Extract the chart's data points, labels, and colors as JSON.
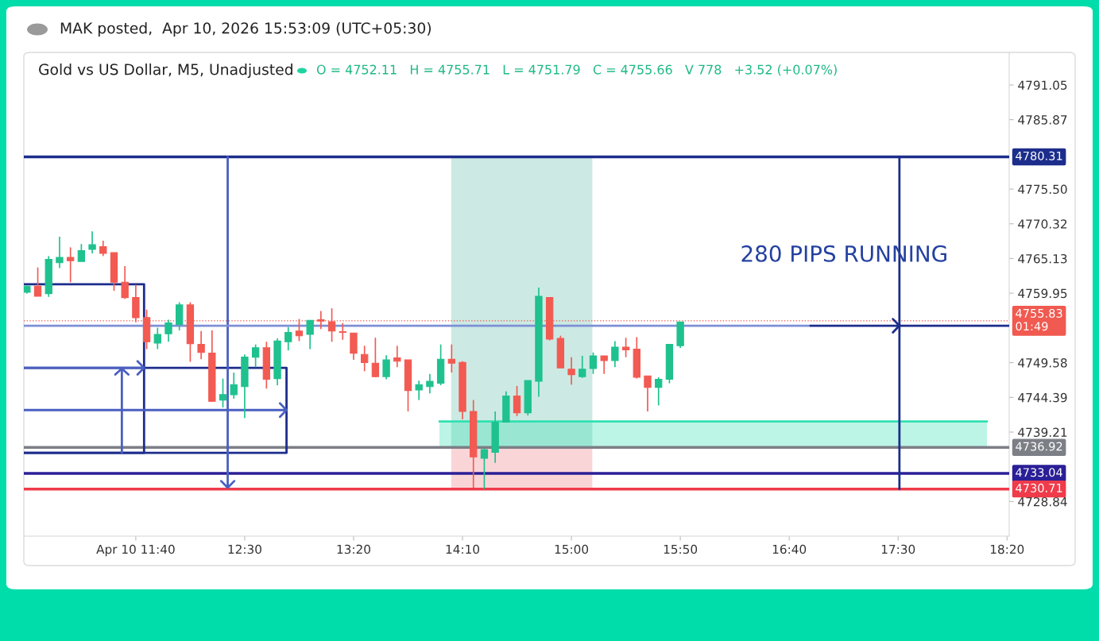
{
  "chart_data": {
    "type": "candlestick",
    "title": "Gold vs US Dollar, M5, Unadjusted",
    "subtitle": "O = 4752.11   H = 4755.71   L = 4751.79   C = 4755.66   V 778   +3.52 (+0.07%)",
    "annotations": [
      "MAK posted,  Apr 10, 2026 15:53:09 (UTC+05:30)",
      "280 PIPS RUNNING"
    ],
    "x": [
      10.8333,
      10.9167,
      11.0,
      11.0833,
      11.1667,
      11.25,
      11.3333,
      11.4167,
      11.5,
      11.5833,
      11.6667,
      11.75,
      11.8333,
      11.9167,
      12.0,
      12.0833,
      12.1667,
      12.25,
      12.3333,
      12.4167,
      12.5,
      12.5833,
      12.6667,
      12.75,
      12.8333,
      12.9167,
      13.0,
      13.0833,
      13.1667,
      13.25,
      13.3333,
      13.4167,
      13.5,
      13.5833,
      13.6667,
      13.75,
      13.8333,
      13.9167,
      14.0,
      14.0833,
      14.1667,
      14.25,
      14.3333,
      14.4167,
      14.5,
      14.5833,
      14.6667,
      14.75,
      14.8333,
      14.9167,
      15.0,
      15.0833,
      15.1667,
      15.25,
      15.3333,
      15.4167,
      15.5,
      15.5833,
      15.6667,
      15.75,
      15.8333
    ],
    "ohlc": [
      [
        4760.1,
        4761.1,
        4759.9,
        4761.0
      ],
      [
        4761.0,
        4763.8,
        4759.5,
        4759.5
      ],
      [
        4759.9,
        4765.5,
        4759.4,
        4765.0
      ],
      [
        4764.5,
        4768.4,
        4763.7,
        4765.3
      ],
      [
        4765.3,
        4766.8,
        4761.6,
        4764.8
      ],
      [
        4764.7,
        4767.3,
        4764.7,
        4766.3
      ],
      [
        4766.5,
        4769.2,
        4765.9,
        4767.2
      ],
      [
        4766.9,
        4767.8,
        4765.5,
        4765.9
      ],
      [
        4766.0,
        4766.0,
        4760.3,
        4761.6
      ],
      [
        4761.6,
        4764.0,
        4759.1,
        4759.3
      ],
      [
        4759.3,
        4761.2,
        4755.6,
        4756.3
      ],
      [
        4756.3,
        4757.5,
        4751.6,
        4752.7
      ],
      [
        4752.5,
        4754.8,
        4751.6,
        4753.8
      ],
      [
        4753.9,
        4756.0,
        4752.7,
        4755.5
      ],
      [
        4755.3,
        4758.6,
        4754.4,
        4758.2
      ],
      [
        4758.2,
        4758.6,
        4749.7,
        4752.4
      ],
      [
        4752.3,
        4754.3,
        4750.1,
        4751.1
      ],
      [
        4751.0,
        4754.4,
        4743.8,
        4743.8
      ],
      [
        4744.0,
        4747.2,
        4742.9,
        4744.8
      ],
      [
        4744.8,
        4748.1,
        4744.2,
        4746.3
      ],
      [
        4746.0,
        4750.8,
        4741.3,
        4750.4
      ],
      [
        4750.4,
        4752.3,
        4748.9,
        4751.8
      ],
      [
        4751.8,
        4752.7,
        4745.7,
        4747.1
      ],
      [
        4747.2,
        4753.2,
        4746.2,
        4752.8
      ],
      [
        4752.7,
        4754.9,
        4751.4,
        4754.1
      ],
      [
        4754.3,
        4756.1,
        4752.8,
        4753.6
      ],
      [
        4753.8,
        4755.9,
        4751.6,
        4755.9
      ],
      [
        4756.0,
        4757.3,
        4754.6,
        4755.8
      ],
      [
        4755.7,
        4757.7,
        4752.7,
        4754.3
      ],
      [
        4754.2,
        4755.5,
        4753.0,
        4754.1
      ],
      [
        4754.0,
        4754.0,
        4750.0,
        4751.0
      ],
      [
        4750.8,
        4752.1,
        4748.3,
        4749.6
      ],
      [
        4749.5,
        4753.3,
        4747.4,
        4747.5
      ],
      [
        4747.5,
        4750.7,
        4747.1,
        4750.0
      ],
      [
        4750.3,
        4752.1,
        4748.9,
        4749.8
      ],
      [
        4750.0,
        4750.0,
        4742.3,
        4745.4
      ],
      [
        4745.5,
        4746.9,
        4744.0,
        4746.3
      ],
      [
        4746.0,
        4747.9,
        4745.0,
        4746.8
      ],
      [
        4746.5,
        4752.3,
        4746.2,
        4750.1
      ],
      [
        4750.1,
        4752.3,
        4748.1,
        4749.5
      ],
      [
        4749.6,
        4749.8,
        4741.1,
        4742.3
      ],
      [
        4742.3,
        4744.0,
        4730.9,
        4735.5
      ],
      [
        4735.3,
        4736.7,
        4730.7,
        4736.6
      ],
      [
        4736.2,
        4742.3,
        4734.6,
        4740.7
      ],
      [
        4740.7,
        4745.3,
        4740.7,
        4744.6
      ],
      [
        4744.6,
        4746.1,
        4741.6,
        4742.1
      ],
      [
        4742.1,
        4746.9,
        4741.7,
        4746.9
      ],
      [
        4746.8,
        4760.8,
        4744.5,
        4759.5
      ],
      [
        4759.3,
        4759.3,
        4752.9,
        4753.1
      ],
      [
        4753.2,
        4753.6,
        4748.8,
        4748.8
      ],
      [
        4748.6,
        4750.4,
        4746.3,
        4747.8
      ],
      [
        4747.5,
        4750.6,
        4747.3,
        4748.6
      ],
      [
        4748.7,
        4751.1,
        4747.9,
        4750.6
      ],
      [
        4750.6,
        4750.6,
        4747.9,
        4749.9
      ],
      [
        4749.9,
        4752.8,
        4748.9,
        4751.9
      ],
      [
        4751.9,
        4753.3,
        4750.4,
        4751.5
      ],
      [
        4751.6,
        4753.4,
        4747.2,
        4747.4
      ],
      [
        4747.6,
        4747.6,
        4742.3,
        4745.9
      ],
      [
        4745.9,
        4747.4,
        4743.2,
        4747.1
      ],
      [
        4747.1,
        4752.3,
        4746.5,
        4752.3
      ],
      [
        4752.11,
        4755.71,
        4751.79,
        4755.66
      ]
    ],
    "series": [
      {
        "type": "line",
        "color": "#5fbfa8",
        "x": [
          14.08,
          15.16
        ],
        "values": [
          null,
          null
        ],
        "lower": [
          4736.9,
          4736.9
        ],
        "upper": [
          4780.3,
          4780.3
        ]
      },
      {
        "type": "line",
        "color": "#f07c86",
        "x": [
          14.08,
          15.16
        ],
        "values": [
          null,
          null
        ],
        "lower": [
          4730.7,
          4730.7
        ],
        "upper": [
          4736.9,
          4736.9
        ]
      },
      {
        "type": "line",
        "color": "#2ee0b0",
        "x": [
          13.99,
          18.18
        ],
        "values": [
          4740.8,
          4740.8
        ],
        "lower": [
          4736.9,
          4736.9
        ],
        "upper": [
          4740.8,
          4740.8
        ]
      },
      {
        "type": "line",
        "color": "#1c2d8c",
        "x": [
          10.81,
          11.73,
          11.73,
          10.81
        ],
        "values": [
          4761.3,
          4761.3,
          4736.1,
          4736.1
        ]
      },
      {
        "type": "line",
        "color": "#1c2d8c",
        "x": [
          10.81,
          12.82,
          12.82,
          10.81
        ],
        "values": [
          4748.8,
          4748.8,
          4736.1,
          4736.1
        ]
      },
      {
        "type": "line",
        "color": "#4a5fc1",
        "x": [
          11.56,
          11.56,
          11.51,
          11.56,
          11.61
        ],
        "values": [
          4736.1,
          4748.7,
          4747.8,
          4748.7,
          4747.8
        ]
      },
      {
        "type": "line",
        "color": "#4a5fc1",
        "x": [
          10.81,
          11.73,
          11.68,
          11.73,
          11.68
        ],
        "values": [
          4748.8,
          4748.8,
          4749.8,
          4748.8,
          4747.8
        ]
      },
      {
        "type": "line",
        "color": "#4a5fc1",
        "x": [
          10.81,
          12.82,
          12.77,
          12.82,
          12.77
        ],
        "values": [
          4742.5,
          4742.5,
          4743.5,
          4742.5,
          4741.5
        ]
      },
      {
        "type": "line",
        "color": "#4a5fc1",
        "x": [
          12.37,
          12.37,
          12.32,
          12.37,
          12.42
        ],
        "values": [
          4780.3,
          4730.9,
          4731.9,
          4730.9,
          4731.9
        ]
      },
      {
        "type": "line",
        "color": "#7d8fd6",
        "x": [
          10.81,
          16.83
        ],
        "values": [
          4755.1,
          4755.1
        ]
      },
      {
        "type": "line",
        "color": "#1c2d8c",
        "x": [
          16.83,
          17.51,
          17.46,
          17.51,
          17.46
        ],
        "values": [
          4755.1,
          4755.1,
          4756.1,
          4755.1,
          4754.1
        ]
      },
      {
        "type": "line",
        "color": "#1c2d8c",
        "x": [
          17.51,
          18.35
        ],
        "values": [
          4755.1,
          4755.1
        ]
      },
      {
        "type": "line",
        "color": "#1c2d8c",
        "x": [
          17.51,
          17.51
        ],
        "values": [
          4780.3,
          4730.7
        ]
      }
    ],
    "ref_lines": [
      {
        "axis": "y",
        "value": 4780.31,
        "label": "4780.31",
        "color": "#1c2d8c",
        "line_style": "solid"
      },
      {
        "axis": "y",
        "value": 4755.83,
        "label": "4755.83\n01:49",
        "color": "#f05a50",
        "line_style": "dotted"
      },
      {
        "axis": "y",
        "value": 4736.92,
        "label": "4736.92",
        "color": "#7c7f86",
        "line_style": "solid"
      },
      {
        "axis": "y",
        "value": 4733.04,
        "label": "4733.04",
        "color": "#2a1f96",
        "line_style": "solid"
      },
      {
        "axis": "y",
        "value": 4730.71,
        "label": "4730.71",
        "color": "#ef3b4a",
        "line_style": "solid"
      }
    ],
    "xlim": [
      10.81,
      18.35
    ],
    "xticks": [
      {
        "value": 11.6667,
        "label": "Apr 10 11:40"
      },
      {
        "value": 12.5,
        "label": "12:30"
      },
      {
        "value": 13.3333,
        "label": "13:20"
      },
      {
        "value": 14.1667,
        "label": "14:10"
      },
      {
        "value": 15.0,
        "label": "15:00"
      },
      {
        "value": 15.8333,
        "label": "15:50"
      },
      {
        "value": 16.6667,
        "label": "16:40"
      },
      {
        "value": 17.5,
        "label": "17:30"
      },
      {
        "value": 18.3333,
        "label": "18:20"
      }
    ],
    "ylim": [
      4723.67,
      4795.91
    ],
    "yticks": [
      4791.05,
      4785.87,
      {
        "value": 4775.5,
        "label": "4775.50"
      },
      4770.32,
      4765.13,
      4759.95,
      4749.58,
      4744.39,
      4739.21,
      4728.84
    ]
  }
}
